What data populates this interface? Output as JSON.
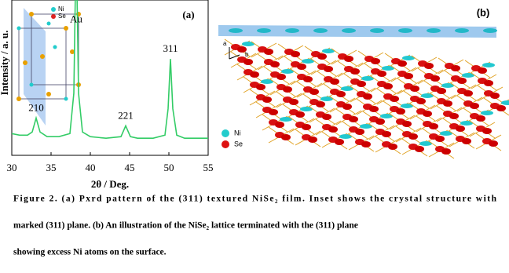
{
  "chart_data": {
    "type": "line",
    "panel_label": "(a)",
    "xlabel": "2θ / Deg.",
    "ylabel": "Intensity / a. u.",
    "x": [
      30,
      31,
      32,
      32.6,
      33.1,
      33.6,
      34.5,
      36,
      37.4,
      37.9,
      38.2,
      38.5,
      39,
      40,
      42,
      43.9,
      44.5,
      45.1,
      46,
      48,
      49.5,
      49.9,
      50.2,
      50.5,
      51,
      52,
      53,
      54,
      55
    ],
    "values": [
      14,
      13,
      13,
      15,
      24,
      15,
      12,
      12,
      14,
      40,
      140,
      40,
      15,
      12,
      11,
      12,
      19,
      12,
      11,
      11,
      13,
      30,
      62,
      30,
      13,
      11,
      11,
      11,
      11
    ],
    "color": "#33cc66",
    "xlim": [
      30,
      55
    ],
    "xticks": [
      30,
      35,
      40,
      45,
      50,
      55
    ],
    "ylim": [
      0,
      100
    ],
    "annotations": [
      {
        "text": "210",
        "x": 33.1,
        "y": 24
      },
      {
        "text": "Au",
        "x": 38.2,
        "y": 81
      },
      {
        "text": "221",
        "x": 44.5,
        "y": 19
      },
      {
        "text": "311",
        "x": 50.2,
        "y": 62
      }
    ],
    "inset_legend": [
      {
        "name": "Ni",
        "color": "#22cccc"
      },
      {
        "name": "Se",
        "color": "#dd2222"
      }
    ]
  },
  "panel_b": {
    "label": "(b)",
    "axes": [
      "a",
      "b"
    ],
    "legend": [
      {
        "name": "Ni",
        "color": "#22cccc"
      },
      {
        "name": "Se",
        "color": "#dd1111"
      }
    ]
  },
  "caption": [
    "Figure 2. (a) Pxrd pattern of the (311) textured NiSe₂ film. Inset shows the crystal structure with",
    "marked (311) plane. (b) An illustration of the NiSe₂ lattice terminated with the (311) plane",
    "showing excess Ni atoms on the surface."
  ]
}
